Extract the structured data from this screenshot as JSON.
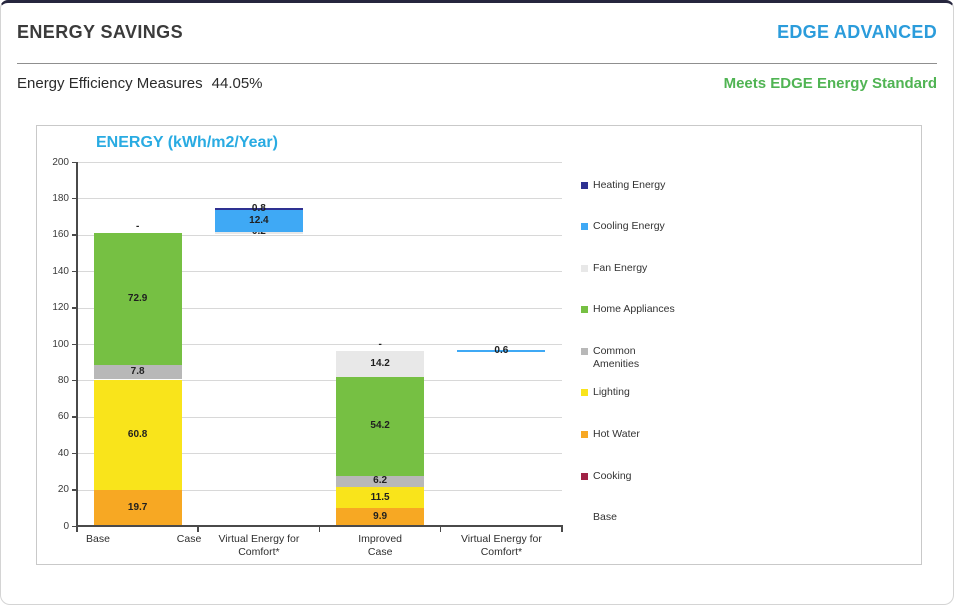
{
  "header": {
    "title": "ENERGY SAVINGS",
    "standard_label": "EDGE ADVANCED"
  },
  "subheader": {
    "measures_label": "Energy Efficiency Measures",
    "measures_value": "44.05%",
    "status": "Meets EDGE Energy Standard"
  },
  "colors": {
    "accent_blue": "#2b9cdb",
    "status_green": "#50b453",
    "title_blue": "#29abe2",
    "heating": "#2e3192",
    "cooling": "#3fa9f5",
    "fan": "#e8e8e8",
    "appliances": "#76c043",
    "amenities": "#b8b8b8",
    "lighting": "#f9e41b",
    "hot_water": "#f7a823",
    "cooking": "#a02245"
  },
  "chart_data": {
    "type": "bar",
    "title": "ENERGY (kWh/m2/Year)",
    "ylim": [
      0,
      200
    ],
    "yticks": [
      0,
      20,
      40,
      60,
      80,
      100,
      120,
      140,
      160,
      180,
      200
    ],
    "grid": true,
    "legend_position": "right",
    "categories": [
      "Base Case",
      "Virtual Energy for Comfort*",
      "Improved Case",
      "Virtual Energy for Comfort*"
    ],
    "bars": [
      {
        "category": "Base Case",
        "label_style": "split",
        "label_parts": [
          "Base",
          "Case"
        ],
        "base": 0,
        "top_label": "-",
        "segments": [
          {
            "name": "Hot Water",
            "value": 19.7,
            "label": "19.7",
            "color": "hot_water"
          },
          {
            "name": "Lighting",
            "value": 60.8,
            "label": "60.8",
            "color": "lighting"
          },
          {
            "name": "Common Amenities",
            "value": 7.8,
            "label": "7.8",
            "color": "amenities"
          },
          {
            "name": "Home Appliances",
            "value": 72.9,
            "label": "72.9",
            "color": "appliances"
          }
        ]
      },
      {
        "category": "Virtual Energy for Comfort*",
        "label_style": "center",
        "label_parts": [
          "Virtual Energy for",
          "Comfort*"
        ],
        "base": 161.2,
        "segments": [
          {
            "name": "Fan Energy",
            "value": 0.2,
            "label": "0.2",
            "color": "fan"
          },
          {
            "name": "Cooling Energy",
            "value": 12.4,
            "label": "12.4",
            "color": "cooling"
          },
          {
            "name": "Heating Energy",
            "value": 0.8,
            "label": "0.8",
            "color": "heating"
          }
        ]
      },
      {
        "category": "Improved Case",
        "label_style": "center",
        "label_parts": [
          "Improved",
          "Case"
        ],
        "base": 0,
        "top_label": "-",
        "segments": [
          {
            "name": "Hot Water",
            "value": 9.9,
            "label": "9.9",
            "color": "hot_water"
          },
          {
            "name": "Lighting",
            "value": 11.5,
            "label": "11.5",
            "color": "lighting"
          },
          {
            "name": "Common Amenities",
            "value": 6.2,
            "label": "6.2",
            "color": "amenities"
          },
          {
            "name": "Home Appliances",
            "value": 54.2,
            "label": "54.2",
            "color": "appliances"
          },
          {
            "name": "Fan Energy",
            "value": 14.2,
            "label": "14.2",
            "color": "fan"
          }
        ]
      },
      {
        "category": "Virtual Energy for Comfort*",
        "label_style": "center",
        "label_parts": [
          "Virtual Energy for",
          "Comfort*"
        ],
        "base": 96.0,
        "segments": [
          {
            "name": "Cooling Energy",
            "value": 0.6,
            "label": "0.6",
            "color": "cooling"
          }
        ]
      }
    ],
    "legend": [
      {
        "label": "Heating Energy",
        "color": "heating"
      },
      {
        "label": "Cooling Energy",
        "color": "cooling"
      },
      {
        "label": "Fan Energy",
        "color": "fan"
      },
      {
        "label": "Home Appliances",
        "color": "appliances"
      },
      {
        "label": "Common Amenities",
        "lines": [
          "Common",
          "Amenities"
        ],
        "color": "amenities"
      },
      {
        "label": "Lighting",
        "color": "lighting"
      },
      {
        "label": "Hot Water",
        "color": "hot_water"
      },
      {
        "label": "Cooking",
        "color": "cooking"
      },
      {
        "label": "Base",
        "color": null
      }
    ]
  }
}
